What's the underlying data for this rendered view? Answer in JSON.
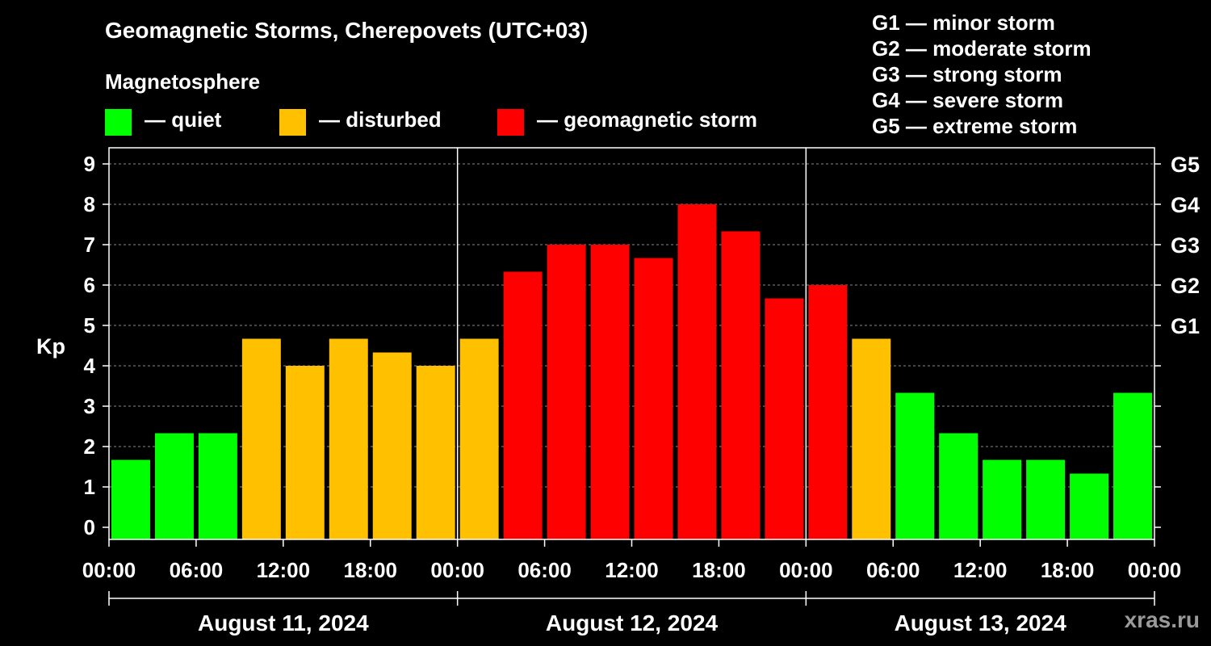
{
  "header": {
    "title": "Geomagnetic Storms, Cherepovets (UTC+03)",
    "magnetosphere_label": "Magnetosphere"
  },
  "legend": [
    {
      "label": "— quiet",
      "color": "#00ff00"
    },
    {
      "label": "— disturbed",
      "color": "#ffc000"
    },
    {
      "label": "— geomagnetic storm",
      "color": "#ff0000"
    }
  ],
  "storm_scale": [
    {
      "label": "G1 — minor storm"
    },
    {
      "label": "G2 — moderate storm"
    },
    {
      "label": "G3 — strong storm"
    },
    {
      "label": "G4 — severe storm"
    },
    {
      "label": "G5 — extreme storm"
    }
  ],
  "watermark": "xras.ru",
  "chart_data": {
    "type": "bar",
    "ylabel": "Kp",
    "ylim": [
      -0.3,
      9.4
    ],
    "yticks": [
      0,
      1,
      2,
      3,
      4,
      5,
      6,
      7,
      8,
      9
    ],
    "right_axis_labels": [
      {
        "value": 5,
        "label": "G1"
      },
      {
        "value": 6,
        "label": "G2"
      },
      {
        "value": 7,
        "label": "G3"
      },
      {
        "value": 8,
        "label": "G4"
      },
      {
        "value": 9,
        "label": "G5"
      }
    ],
    "x_tick_labels": [
      "00:00",
      "06:00",
      "12:00",
      "18:00",
      "00:00",
      "06:00",
      "12:00",
      "18:00",
      "00:00",
      "06:00",
      "12:00",
      "18:00",
      "00:00"
    ],
    "days": [
      "August 11, 2024",
      "August 12, 2024",
      "August 13, 2024"
    ],
    "grid": true,
    "bar_colors": {
      "quiet": "#00ff00",
      "disturbed": "#ffc000",
      "storm": "#ff0000"
    },
    "bars": [
      {
        "time": "2024-08-11 00:00",
        "kp": 1.67,
        "level": "quiet"
      },
      {
        "time": "2024-08-11 03:00",
        "kp": 2.33,
        "level": "quiet"
      },
      {
        "time": "2024-08-11 06:00",
        "kp": 2.33,
        "level": "quiet"
      },
      {
        "time": "2024-08-11 09:00",
        "kp": 4.67,
        "level": "disturbed"
      },
      {
        "time": "2024-08-11 12:00",
        "kp": 4.0,
        "level": "disturbed"
      },
      {
        "time": "2024-08-11 15:00",
        "kp": 4.67,
        "level": "disturbed"
      },
      {
        "time": "2024-08-11 18:00",
        "kp": 4.33,
        "level": "disturbed"
      },
      {
        "time": "2024-08-11 21:00",
        "kp": 4.0,
        "level": "disturbed"
      },
      {
        "time": "2024-08-12 00:00",
        "kp": 4.67,
        "level": "disturbed"
      },
      {
        "time": "2024-08-12 03:00",
        "kp": 6.33,
        "level": "storm"
      },
      {
        "time": "2024-08-12 06:00",
        "kp": 7.0,
        "level": "storm"
      },
      {
        "time": "2024-08-12 09:00",
        "kp": 7.0,
        "level": "storm"
      },
      {
        "time": "2024-08-12 12:00",
        "kp": 6.67,
        "level": "storm"
      },
      {
        "time": "2024-08-12 15:00",
        "kp": 8.0,
        "level": "storm"
      },
      {
        "time": "2024-08-12 18:00",
        "kp": 7.33,
        "level": "storm"
      },
      {
        "time": "2024-08-12 21:00",
        "kp": 5.67,
        "level": "storm"
      },
      {
        "time": "2024-08-13 00:00",
        "kp": 6.0,
        "level": "storm"
      },
      {
        "time": "2024-08-13 03:00",
        "kp": 4.67,
        "level": "disturbed"
      },
      {
        "time": "2024-08-13 06:00",
        "kp": 3.33,
        "level": "quiet"
      },
      {
        "time": "2024-08-13 09:00",
        "kp": 2.33,
        "level": "quiet"
      },
      {
        "time": "2024-08-13 12:00",
        "kp": 1.67,
        "level": "quiet"
      },
      {
        "time": "2024-08-13 15:00",
        "kp": 1.67,
        "level": "quiet"
      },
      {
        "time": "2024-08-13 18:00",
        "kp": 1.33,
        "level": "quiet"
      },
      {
        "time": "2024-08-13 21:00",
        "kp": 3.33,
        "level": "quiet"
      }
    ]
  }
}
